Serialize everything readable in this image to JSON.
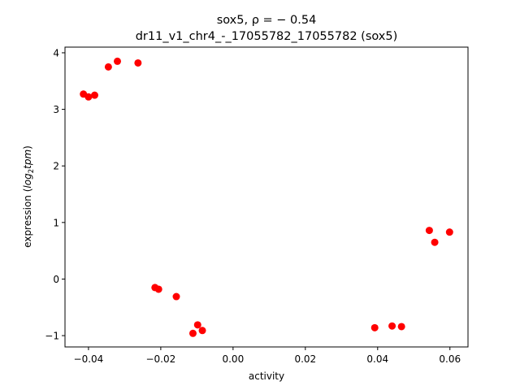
{
  "chart_data": {
    "type": "scatter",
    "title_line1": "sox5, ρ = − 0.54",
    "title_line2": "dr11_v1_chr4_-_17055782_17055782 (sox5)",
    "xlabel": "activity",
    "ylabel_prefix": "expression (",
    "ylabel_math": "log",
    "ylabel_sub": "2",
    "ylabel_math2": "tpm",
    "ylabel_suffix": ")",
    "xlim": [
      -0.0465,
      0.065
    ],
    "ylim": [
      -1.2,
      4.1
    ],
    "xticks": [
      -0.04,
      -0.02,
      0.0,
      0.02,
      0.04,
      0.06
    ],
    "xtick_labels": [
      "−0.04",
      "−0.02",
      "0.00",
      "0.02",
      "0.04",
      "0.06"
    ],
    "yticks": [
      -1,
      0,
      1,
      2,
      3,
      4
    ],
    "ytick_labels": [
      "−1",
      "0",
      "1",
      "2",
      "3",
      "4"
    ],
    "marker_color": "#ff0000",
    "points": [
      {
        "x": -0.0414,
        "y": 3.27
      },
      {
        "x": -0.04,
        "y": 3.22
      },
      {
        "x": -0.0383,
        "y": 3.25
      },
      {
        "x": -0.0345,
        "y": 3.75
      },
      {
        "x": -0.032,
        "y": 3.85
      },
      {
        "x": -0.0263,
        "y": 3.82
      },
      {
        "x": -0.0216,
        "y": -0.15
      },
      {
        "x": -0.0206,
        "y": -0.18
      },
      {
        "x": -0.0157,
        "y": -0.31
      },
      {
        "x": -0.0098,
        "y": -0.81
      },
      {
        "x": -0.0085,
        "y": -0.91
      },
      {
        "x": -0.0111,
        "y": -0.96
      },
      {
        "x": 0.0392,
        "y": -0.86
      },
      {
        "x": 0.044,
        "y": -0.83
      },
      {
        "x": 0.0466,
        "y": -0.84
      },
      {
        "x": 0.0543,
        "y": 0.86
      },
      {
        "x": 0.0558,
        "y": 0.65
      },
      {
        "x": 0.0599,
        "y": 0.83
      }
    ]
  }
}
